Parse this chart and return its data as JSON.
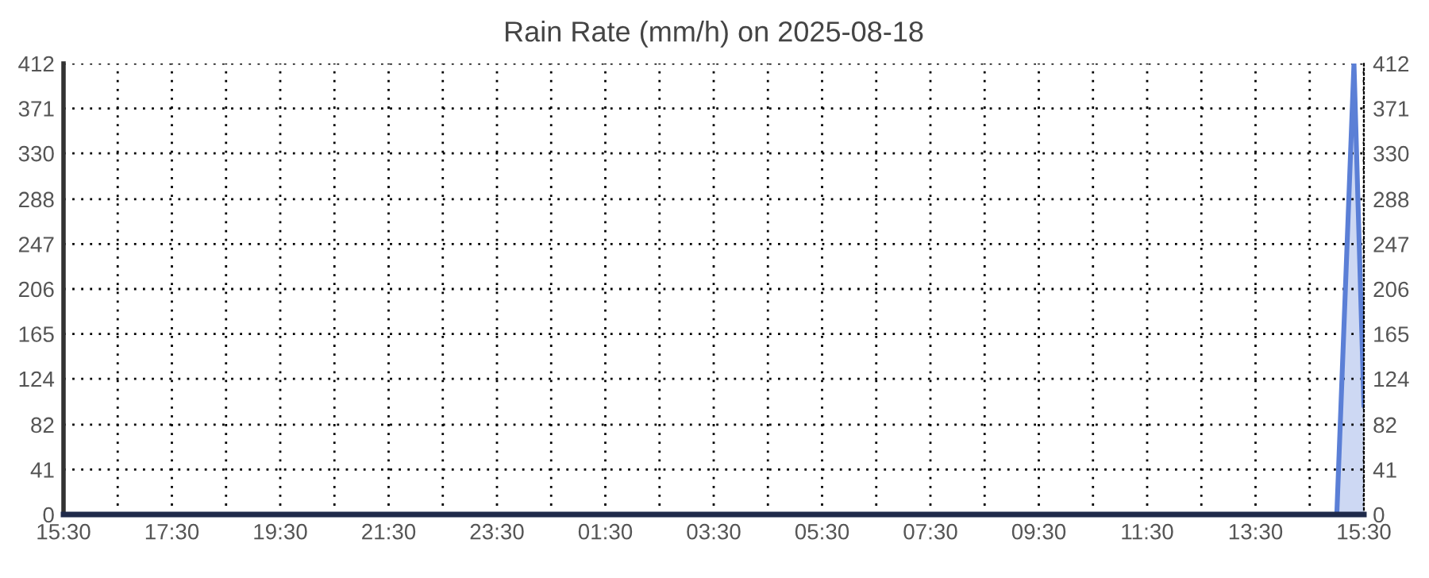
{
  "chart_data": {
    "type": "area",
    "title": "Rain Rate (mm/h) on 2025-08-18",
    "x": [
      "2025-08-17T15:30",
      "2025-08-18T15:00",
      "2025-08-18T15:19",
      "2025-08-18T15:30"
    ],
    "series": [
      {
        "color": "#5b7fd6",
        "values": [
          0,
          0,
          412,
          100
        ]
      }
    ],
    "xlim": [
      "2025-08-17T15:30",
      "2025-08-18T15:30"
    ],
    "xticks": [
      {
        "value": "2025-08-17T15:30",
        "label": "15:30"
      },
      {
        "value": "2025-08-17T16:30",
        "label": null
      },
      {
        "value": "2025-08-17T17:30",
        "label": "17:30"
      },
      {
        "value": "2025-08-17T18:30",
        "label": null
      },
      {
        "value": "2025-08-17T19:30",
        "label": "19:30"
      },
      {
        "value": "2025-08-17T20:30",
        "label": null
      },
      {
        "value": "2025-08-17T21:30",
        "label": "21:30"
      },
      {
        "value": "2025-08-17T22:30",
        "label": null
      },
      {
        "value": "2025-08-17T23:30",
        "label": "23:30"
      },
      {
        "value": "2025-08-18T00:30",
        "label": null
      },
      {
        "value": "2025-08-18T01:30",
        "label": "01:30"
      },
      {
        "value": "2025-08-18T02:30",
        "label": null
      },
      {
        "value": "2025-08-18T03:30",
        "label": "03:30"
      },
      {
        "value": "2025-08-18T04:30",
        "label": null
      },
      {
        "value": "2025-08-18T05:30",
        "label": "05:30"
      },
      {
        "value": "2025-08-18T06:30",
        "label": null
      },
      {
        "value": "2025-08-18T07:30",
        "label": "07:30"
      },
      {
        "value": "2025-08-18T08:30",
        "label": null
      },
      {
        "value": "2025-08-18T09:30",
        "label": "09:30"
      },
      {
        "value": "2025-08-18T10:30",
        "label": null
      },
      {
        "value": "2025-08-18T11:30",
        "label": "11:30"
      },
      {
        "value": "2025-08-18T12:30",
        "label": null
      },
      {
        "value": "2025-08-18T13:30",
        "label": "13:30"
      },
      {
        "value": "2025-08-18T14:30",
        "label": null
      },
      {
        "value": "2025-08-18T15:30",
        "label": "15:30"
      }
    ],
    "ylim": [
      0,
      412
    ],
    "yticks": [
      0,
      41,
      82,
      124,
      165,
      206,
      247,
      288,
      330,
      371,
      412
    ],
    "y2lim": [
      0,
      412
    ],
    "y2ticks": [
      0,
      41,
      82,
      124,
      165,
      206,
      247,
      288,
      330,
      371,
      412
    ],
    "grid": true,
    "line_style": "solid",
    "marker": "none",
    "legend": false
  }
}
